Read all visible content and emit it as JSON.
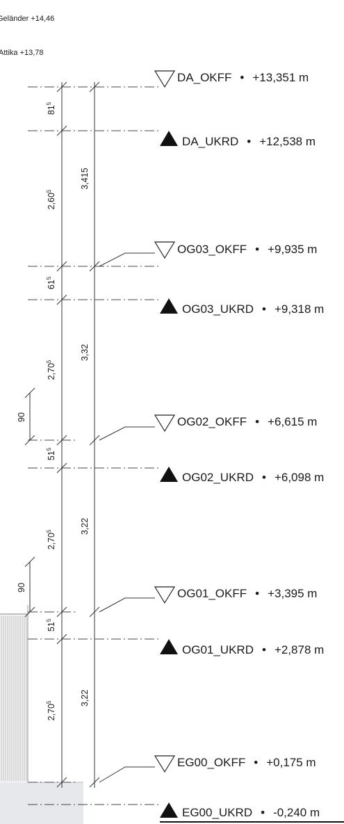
{
  "top_labels": {
    "gelaender": "Geländer +14,46",
    "attika": "Attika +13,78"
  },
  "levels": [
    {
      "name": "DA_OKFF",
      "value": "+13,351 m",
      "marker": "open"
    },
    {
      "name": "DA_UKRD",
      "value": "+12,538 m",
      "marker": "filled"
    },
    {
      "name": "OG03_OKFF",
      "value": "+9,935 m",
      "marker": "open"
    },
    {
      "name": "OG03_UKRD",
      "value": "+9,318 m",
      "marker": "filled"
    },
    {
      "name": "OG02_OKFF",
      "value": "+6,615 m",
      "marker": "open"
    },
    {
      "name": "OG02_UKRD",
      "value": "+6,098 m",
      "marker": "filled"
    },
    {
      "name": "OG01_OKFF",
      "value": "+3,395 m",
      "marker": "open"
    },
    {
      "name": "OG01_UKRD",
      "value": "+2,878 m",
      "marker": "filled"
    },
    {
      "name": "EG00_OKFF",
      "value": "+0,175 m",
      "marker": "open"
    },
    {
      "name": "EG00_UKRD",
      "value": "-0,240 m",
      "marker": "filled"
    }
  ],
  "separator": "•",
  "inner_dims": [
    {
      "main": "81",
      "sup": "5"
    },
    {
      "main": "2,60",
      "sup": "5"
    },
    {
      "main": "61",
      "sup": "5"
    },
    {
      "main": "2,70",
      "sup": "5"
    },
    {
      "main": "51",
      "sup": "5"
    },
    {
      "main": "2,70",
      "sup": "5"
    },
    {
      "main": "51",
      "sup": "5"
    },
    {
      "main": "2,70",
      "sup": "5"
    }
  ],
  "outer_dims": [
    "3,415",
    "3,32",
    "3,22",
    "3,22"
  ],
  "side_dims": [
    "90",
    "90"
  ]
}
